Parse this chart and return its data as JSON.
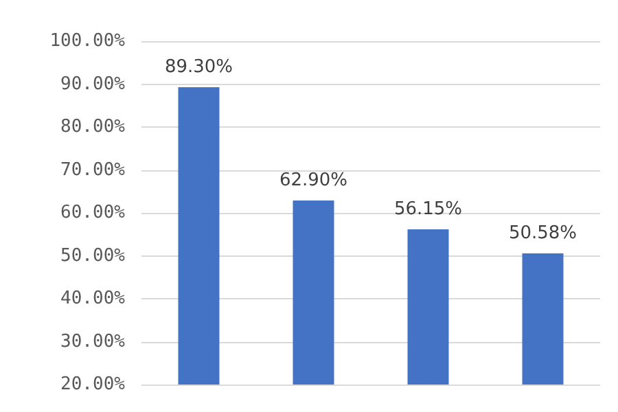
{
  "chart_data": {
    "type": "bar",
    "categories": [
      null,
      null,
      null,
      null
    ],
    "values": [
      89.3,
      62.9,
      56.15,
      50.58
    ],
    "value_labels": [
      "89.30%",
      "62.90%",
      "56.15%",
      "50.58%"
    ],
    "color": "#4472c4",
    "ylim": [
      20,
      100
    ],
    "yticks": [
      {
        "value": 20,
        "label": "20.00%"
      },
      {
        "value": 30,
        "label": "30.00%"
      },
      {
        "value": 40,
        "label": "40.00%"
      },
      {
        "value": 50,
        "label": "50.00%"
      },
      {
        "value": 60,
        "label": "60.00%"
      },
      {
        "value": 70,
        "label": "70.00%"
      },
      {
        "value": 80,
        "label": "80.00%"
      },
      {
        "value": 90,
        "label": "90.00%"
      },
      {
        "value": 100,
        "label": "100.00%"
      }
    ],
    "grid": "y"
  }
}
